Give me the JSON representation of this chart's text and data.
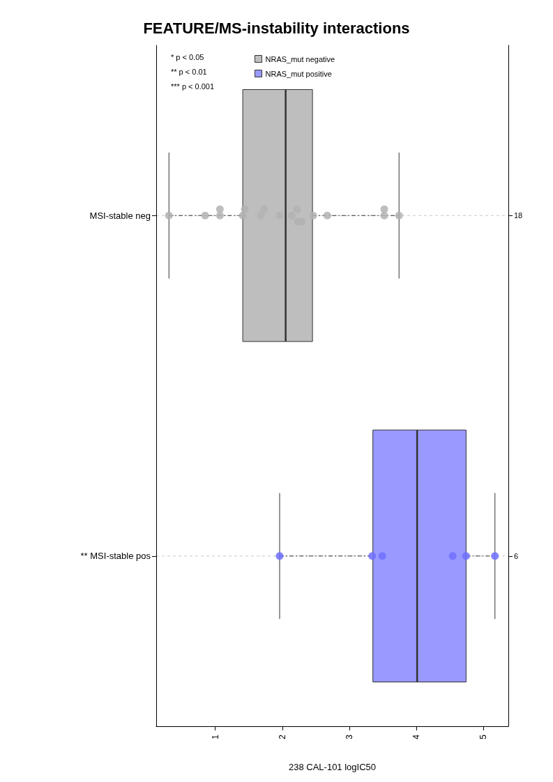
{
  "chart_data": {
    "type": "box",
    "orientation": "horizontal",
    "title": "FEATURE/MS-instability interactions",
    "xlabel": "238 CAL-101 logIC50",
    "categories": [
      "MSI-stable neg",
      "** MSI-stable pos"
    ],
    "y2_categories": [
      "18",
      "6"
    ],
    "xlim": [
      0.12,
      5.37
    ],
    "xticks": [
      1,
      2,
      3,
      4,
      5
    ],
    "grid": "y",
    "legend": "top left",
    "annotations": [
      "* p < 0.05",
      "** p < 0.01",
      "*** p < 0.001"
    ],
    "series": [
      {
        "name": "NRAS_mut negative",
        "color": "#bebebe",
        "boxes": [
          {
            "low": 0.31,
            "q1": 1.41,
            "median": 2.05,
            "q3": 2.45,
            "high": 3.74
          },
          null
        ]
      },
      {
        "name": "NRAS_mut positive",
        "color": "#9999ff",
        "boxes": [
          null,
          {
            "low": 1.96,
            "q1": 3.35,
            "median": 4.01,
            "q3": 4.74,
            "high": 5.17
          }
        ]
      },
      {
        "type": "scatter",
        "color": "#b3b3b3",
        "x": [
          "MSI-stable neg",
          "MSI-stable neg",
          "MSI-stable neg",
          "MSI-stable neg",
          "MSI-stable neg",
          "MSI-stable neg",
          "MSI-stable neg",
          "MSI-stable neg",
          "MSI-stable neg",
          "MSI-stable neg",
          "MSI-stable neg",
          "MSI-stable neg",
          "MSI-stable neg",
          "MSI-stable neg",
          "MSI-stable neg",
          "MSI-stable neg",
          "MSI-stable neg",
          "MSI-stable neg"
        ],
        "values": [
          0.31,
          0.85,
          1.07,
          1.07,
          1.41,
          1.44,
          1.68,
          1.73,
          1.96,
          2.14,
          2.22,
          2.23,
          2.29,
          2.46,
          2.67,
          3.52,
          3.52,
          3.74
        ]
      },
      {
        "type": "scatter",
        "color": "#7070ff",
        "x": [
          "** MSI-stable pos",
          "** MSI-stable pos",
          "** MSI-stable pos",
          "** MSI-stable pos",
          "** MSI-stable pos",
          "** MSI-stable pos"
        ],
        "values": [
          1.96,
          3.34,
          3.49,
          4.54,
          4.74,
          5.17
        ]
      }
    ]
  }
}
